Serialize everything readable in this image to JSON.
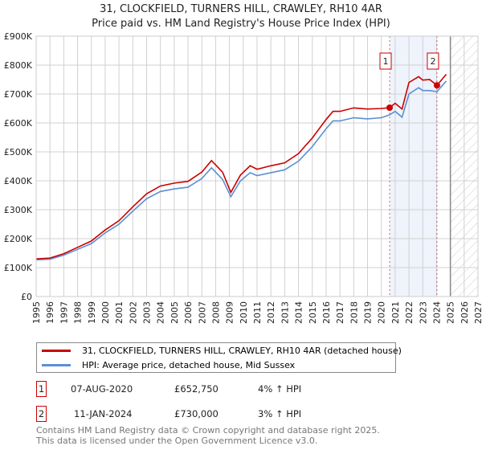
{
  "chart_data": {
    "type": "line",
    "title": "31, CLOCKFIELD, TURNERS HILL, CRAWLEY, RH10 4AR",
    "subtitle": "Price paid vs. HM Land Registry's House Price Index (HPI)",
    "xlim": [
      1995,
      2027
    ],
    "ylim": [
      0,
      900000
    ],
    "x_ticks": [
      "1995",
      "1996",
      "1997",
      "1998",
      "1999",
      "2000",
      "2001",
      "2002",
      "2003",
      "2004",
      "2005",
      "2006",
      "2007",
      "2008",
      "2009",
      "2010",
      "2011",
      "2012",
      "2013",
      "2014",
      "2015",
      "2016",
      "2017",
      "2018",
      "2019",
      "2020",
      "2021",
      "2022",
      "2023",
      "2024",
      "2025",
      "2026",
      "2027"
    ],
    "y_ticks": [
      {
        "v": 0,
        "label": "£0"
      },
      {
        "v": 100000,
        "label": "£100K"
      },
      {
        "v": 200000,
        "label": "£200K"
      },
      {
        "v": 300000,
        "label": "£300K"
      },
      {
        "v": 400000,
        "label": "£400K"
      },
      {
        "v": 500000,
        "label": "£500K"
      },
      {
        "v": 600000,
        "label": "£600K"
      },
      {
        "v": 700000,
        "label": "£700K"
      },
      {
        "v": 800000,
        "label": "£800K"
      },
      {
        "v": 900000,
        "label": "£900K"
      }
    ],
    "grid": true,
    "shaded_range": [
      2020.6,
      2024.03
    ],
    "forecast_hatch_from": 2025.0,
    "series": [
      {
        "name": "31, CLOCKFIELD, TURNERS HILL, CRAWLEY, RH10 4AR (detached house)",
        "color": "#cc0000",
        "x": [
          1995,
          1996,
          1997,
          1998,
          1999,
          2000,
          2001,
          2002,
          2003,
          2004,
          2005,
          2006,
          2007,
          2007.7,
          2008.5,
          2009.1,
          2009.8,
          2010.5,
          2011,
          2012,
          2013,
          2014,
          2015,
          2016,
          2016.5,
          2017,
          2018,
          2019,
          2020,
          2020.6,
          2021,
          2021.5,
          2022,
          2022.7,
          2023,
          2023.5,
          2024.03,
          2024.7
        ],
        "y": [
          130000,
          133000,
          148000,
          170000,
          192000,
          230000,
          262000,
          310000,
          355000,
          382000,
          392000,
          398000,
          430000,
          470000,
          430000,
          360000,
          420000,
          452000,
          440000,
          452000,
          462000,
          494000,
          548000,
          612000,
          640000,
          640000,
          652000,
          648000,
          650000,
          652750,
          668000,
          648000,
          740000,
          760000,
          748000,
          750000,
          730000,
          768000
        ]
      },
      {
        "name": "HPI: Average price, detached house, Mid Sussex",
        "color": "#5b8fd4",
        "x": [
          1995,
          1996,
          1997,
          1998,
          1999,
          2000,
          2001,
          2002,
          2003,
          2004,
          2005,
          2006,
          2007,
          2007.7,
          2008.5,
          2009.1,
          2009.8,
          2010.5,
          2011,
          2012,
          2013,
          2014,
          2015,
          2016,
          2016.5,
          2017,
          2018,
          2019,
          2020,
          2020.6,
          2021,
          2021.5,
          2022,
          2022.7,
          2023,
          2023.5,
          2024.03,
          2024.7
        ],
        "y": [
          127000,
          129000,
          143000,
          163000,
          183000,
          220000,
          250000,
          295000,
          338000,
          363000,
          372000,
          378000,
          408000,
          445000,
          405000,
          345000,
          400000,
          428000,
          418000,
          428000,
          438000,
          468000,
          518000,
          580000,
          607000,
          607000,
          618000,
          614000,
          618000,
          628000,
          640000,
          620000,
          700000,
          722000,
          712000,
          712000,
          708000,
          745000
        ]
      }
    ],
    "sales": [
      {
        "label": "1",
        "x": 2020.6,
        "y": 652750
      },
      {
        "label": "2",
        "x": 2024.03,
        "y": 730000
      }
    ]
  },
  "table": [
    {
      "num": "1",
      "date": "07-AUG-2020",
      "price": "£652,750",
      "hpi": "4% ↑ HPI"
    },
    {
      "num": "2",
      "date": "11-JAN-2024",
      "price": "£730,000",
      "hpi": "3% ↑ HPI"
    }
  ],
  "footer": [
    "Contains HM Land Registry data © Crown copyright and database right 2025.",
    "This data is licensed under the Open Government Licence v3.0."
  ]
}
